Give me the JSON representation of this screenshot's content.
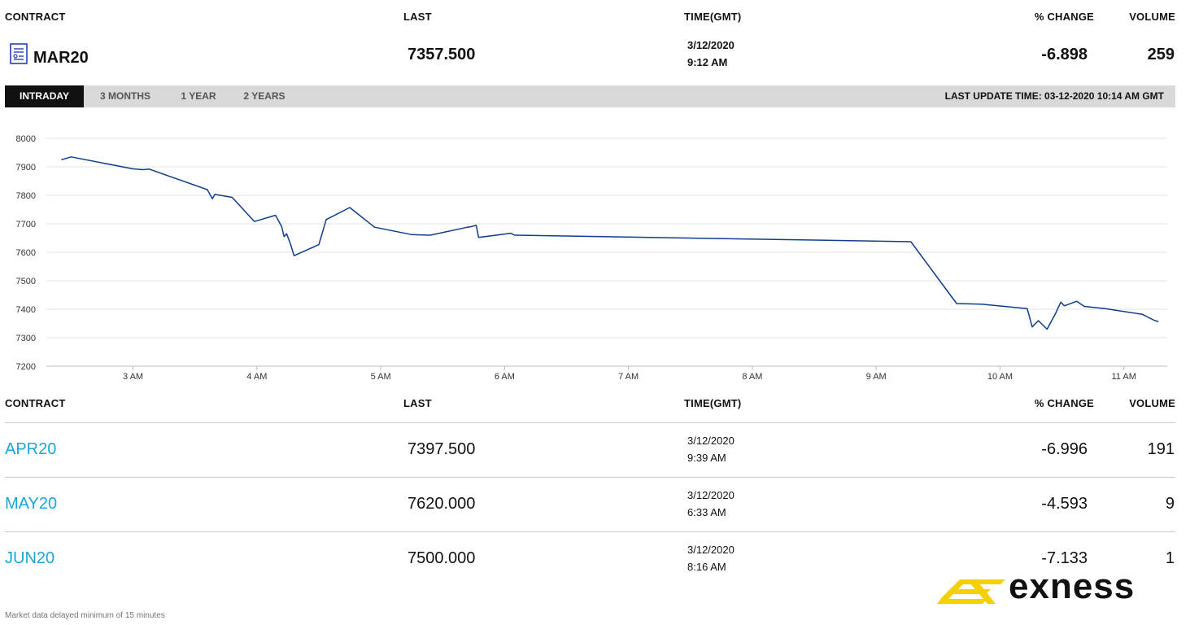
{
  "header": {
    "contract_col": "CONTRACT",
    "last_col": "LAST",
    "time_col": "TIME(GMT)",
    "change_col": "% CHANGE",
    "volume_col": "VOLUME"
  },
  "main_contract": {
    "icon": "contract-doc-icon",
    "name": "MAR20",
    "last": "7357.500",
    "date": "3/12/2020",
    "time": "9:12 AM",
    "change": "-6.898",
    "volume": "259"
  },
  "tabs": [
    {
      "label": "INTRADAY",
      "active": true
    },
    {
      "label": "3 MONTHS",
      "active": false
    },
    {
      "label": "1 YEAR",
      "active": false
    },
    {
      "label": "2 YEARS",
      "active": false
    }
  ],
  "last_update": "LAST UPDATE TIME: 03-12-2020 10:14 AM GMT",
  "chart_data": {
    "type": "line",
    "x_ticks": [
      "3 AM",
      "4 AM",
      "5 AM",
      "6 AM",
      "7 AM",
      "8 AM",
      "9 AM",
      "10 AM",
      "11 AM"
    ],
    "y_ticks": [
      7200,
      7300,
      7400,
      7500,
      7600,
      7700,
      7800,
      7900,
      8000
    ],
    "ylim": [
      7200,
      8000
    ],
    "xlim_hours": [
      2.3,
      11.35
    ],
    "grid": true,
    "line_color": "#0d3d8c",
    "series": [
      {
        "x": [
          2.42,
          2.5,
          3.0,
          3.08,
          3.13,
          3.6,
          3.64,
          3.66,
          3.8,
          3.98,
          4.15,
          4.2,
          4.22,
          4.24,
          4.27,
          4.3,
          4.5,
          4.56,
          4.75,
          4.95,
          5.25,
          5.4,
          5.7,
          5.73,
          5.77,
          5.79,
          6.05,
          6.08,
          9.28,
          9.65,
          9.85,
          10.22,
          10.26,
          10.31,
          10.38,
          10.45,
          10.49,
          10.52,
          10.62,
          10.68,
          10.85,
          11.15,
          11.25,
          11.28
        ],
        "y": [
          7925,
          7935,
          7893,
          7890,
          7892,
          7820,
          7788,
          7803,
          7793,
          7708,
          7730,
          7690,
          7655,
          7665,
          7630,
          7588,
          7627,
          7715,
          7757,
          7688,
          7662,
          7660,
          7688,
          7690,
          7695,
          7652,
          7667,
          7660,
          7637,
          7420,
          7418,
          7402,
          7338,
          7360,
          7330,
          7387,
          7425,
          7412,
          7428,
          7410,
          7402,
          7382,
          7360,
          7357
        ]
      }
    ]
  },
  "rows": [
    {
      "contract": "APR20",
      "last": "7397.500",
      "date": "3/12/2020",
      "time": "9:39 AM",
      "change": "-6.996",
      "volume": "191"
    },
    {
      "contract": "MAY20",
      "last": "7620.000",
      "date": "3/12/2020",
      "time": "6:33 AM",
      "change": "-4.593",
      "volume": "9"
    },
    {
      "contract": "JUN20",
      "last": "7500.000",
      "date": "3/12/2020",
      "time": "8:16 AM",
      "change": "-7.133",
      "volume": "1"
    }
  ],
  "footer_note": "Market data delayed minimum of 15 minutes",
  "logo": {
    "text": "exness",
    "mark_color": "#f5d000"
  }
}
